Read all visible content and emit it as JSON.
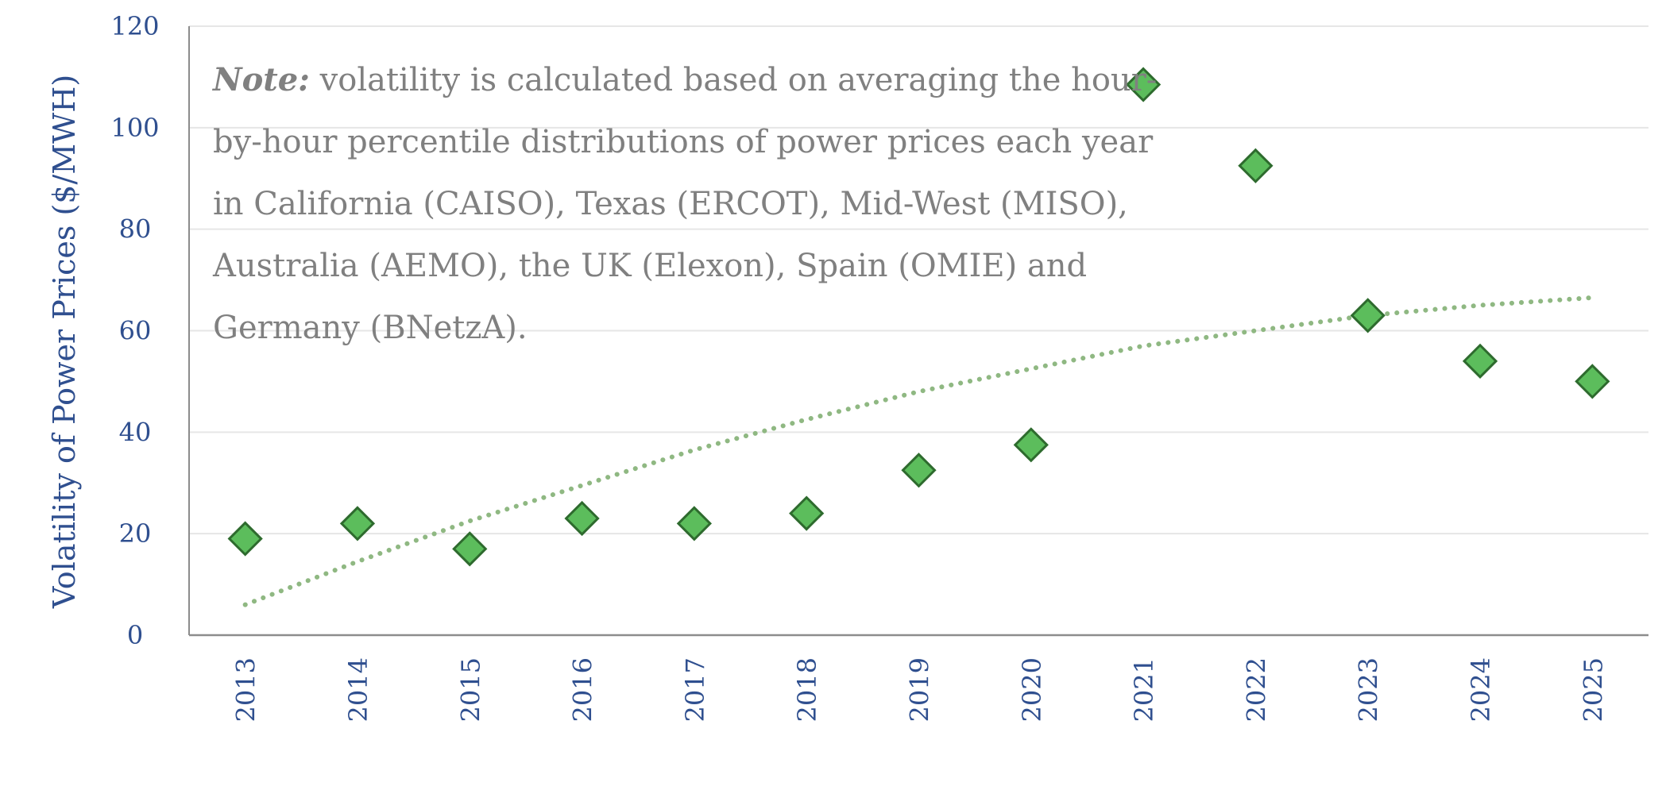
{
  "chart_data": {
    "type": "scatter",
    "ylabel": "Volatility of Power Prices ($/MWH)",
    "xlabel": "",
    "categories": [
      "2013",
      "2014",
      "2015",
      "2016",
      "2017",
      "2018",
      "2019",
      "2020",
      "2021",
      "2022",
      "2023",
      "2024",
      "2025"
    ],
    "values": [
      19,
      22,
      17,
      23,
      22,
      24,
      32.5,
      37.5,
      108.5,
      92.5,
      63,
      54,
      50
    ],
    "trendline": {
      "style": "dotted",
      "values": [
        6,
        14.5,
        22.5,
        29.5,
        36.5,
        42.5,
        48,
        52.5,
        57,
        60,
        63,
        65,
        66.5
      ]
    },
    "ylim": [
      0,
      120
    ],
    "yticks": [
      "0",
      "20",
      "40",
      "60",
      "80",
      "100",
      "120"
    ],
    "grid": true,
    "colors": {
      "marker_fill": "#5cbd5c",
      "marker_stroke": "#2e6b2e",
      "trend": "#8fb882",
      "axis_text": "#2f4f8f",
      "grid": "#e6e6e6",
      "axis": "#8c8c8c"
    },
    "annotation": {
      "lead": "Note:",
      "text": " volatility is calculated based on averaging the hour-by-hour percentile distributions of power prices each year in California (CAISO), Texas (ERCOT), Mid-West (MISO), Australia (AEMO), the UK (Elexon), Spain (OMIE) and Germany (BNetzA)."
    }
  }
}
